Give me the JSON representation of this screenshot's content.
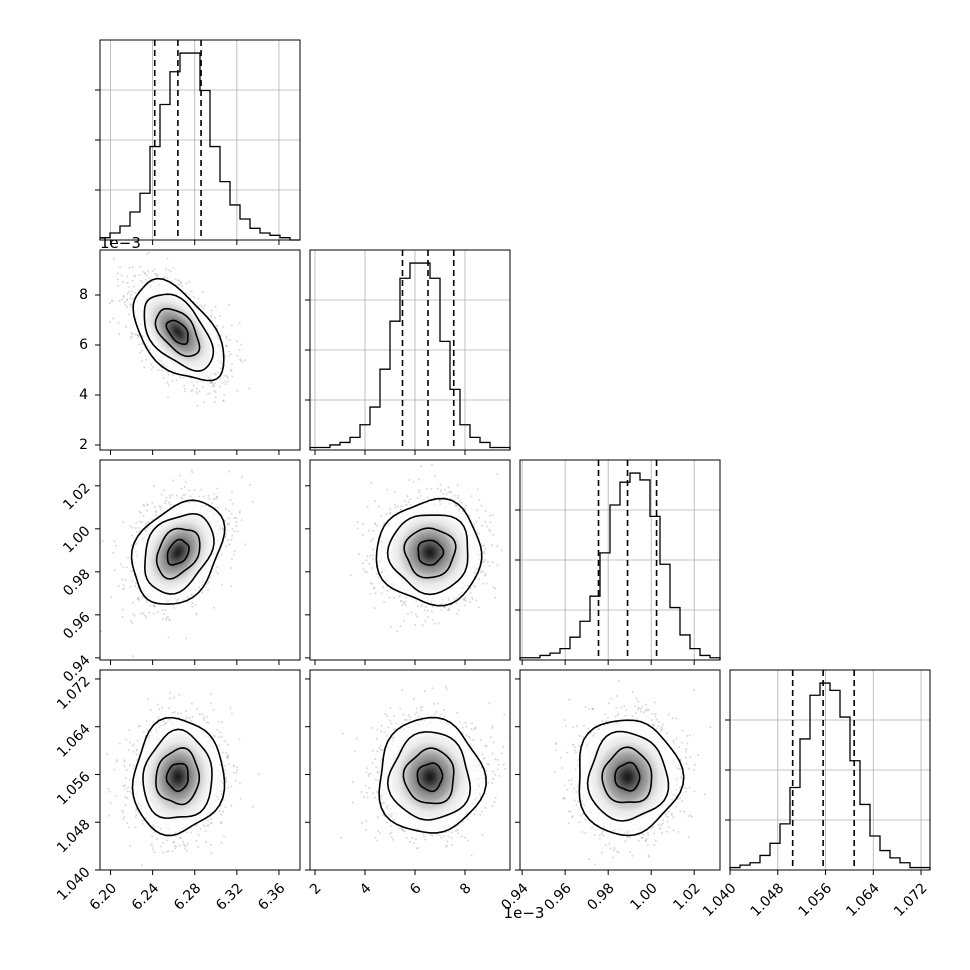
{
  "chart_data": {
    "type": "corner",
    "grid": true,
    "parameters": [
      {
        "range": [
          6.19,
          6.38
        ],
        "ticks": [
          6.2,
          6.24,
          6.28,
          6.32,
          6.36
        ],
        "tick_labels": [
          "6.20",
          "6.24",
          "6.28",
          "6.32",
          "6.36"
        ],
        "offset_text": "",
        "quantiles": [
          6.242,
          6.264,
          6.286
        ],
        "histogram": [
          1,
          3,
          6,
          12,
          20,
          40,
          58,
          72,
          80,
          80,
          64,
          40,
          25,
          15,
          9,
          5,
          3,
          2,
          1,
          0
        ]
      },
      {
        "range": [
          1.8,
          9.8
        ],
        "ticks": [
          2,
          4,
          6,
          8
        ],
        "tick_labels": [
          "2",
          "4",
          "6",
          "8"
        ],
        "offset_text": "1e−3",
        "quantiles": [
          5.5,
          6.52,
          7.55
        ],
        "histogram": [
          1,
          1,
          2,
          3,
          5,
          10,
          17,
          32,
          51,
          68,
          74,
          74,
          68,
          43,
          24,
          10,
          5,
          3,
          1,
          1
        ]
      },
      {
        "range": [
          0.939,
          1.032
        ],
        "ticks": [
          0.94,
          0.96,
          0.98,
          1.0,
          1.02
        ],
        "tick_labels": [
          "0.94",
          "0.96",
          "0.98",
          "1.00",
          "1.02"
        ],
        "offset_text": "",
        "quantiles": [
          0.9755,
          0.989,
          1.0025
        ],
        "histogram": [
          1,
          1,
          2,
          3,
          5,
          10,
          17,
          28,
          47,
          68,
          78,
          82,
          79,
          63,
          42,
          23,
          11,
          5,
          2,
          1
        ]
      },
      {
        "range": [
          1.04,
          1.0735
        ],
        "ticks": [
          1.04,
          1.048,
          1.056,
          1.064,
          1.072
        ],
        "tick_labels": [
          "1.040",
          "1.048",
          "1.056",
          "1.064",
          "1.072"
        ],
        "offset_text": "",
        "quantiles": [
          1.0505,
          1.0556,
          1.0608
        ],
        "histogram": [
          1,
          2,
          3,
          6,
          11,
          19,
          34,
          54,
          72,
          77,
          74,
          63,
          45,
          27,
          14,
          8,
          5,
          3,
          1,
          1
        ]
      }
    ],
    "pairs": [
      {
        "x": 0,
        "y": 1,
        "center": [
          6.264,
          6.52
        ],
        "sigma": [
          0.0205,
          0.95
        ],
        "rho": -0.5
      },
      {
        "x": 0,
        "y": 2,
        "center": [
          6.264,
          0.989
        ],
        "sigma": [
          0.0205,
          0.0115
        ],
        "rho": 0.3
      },
      {
        "x": 1,
        "y": 2,
        "center": [
          6.6,
          0.989
        ],
        "sigma": [
          1.0,
          0.0115
        ],
        "rho": 0.0
      },
      {
        "x": 0,
        "y": 3,
        "center": [
          6.264,
          1.0556
        ],
        "sigma": [
          0.0205,
          0.0046
        ],
        "rho": 0.05
      },
      {
        "x": 1,
        "y": 3,
        "center": [
          6.6,
          1.0556
        ],
        "sigma": [
          1.0,
          0.0046
        ],
        "rho": 0.0
      },
      {
        "x": 2,
        "y": 3,
        "center": [
          0.989,
          1.0556
        ],
        "sigma": [
          0.0115,
          0.0046
        ],
        "rho": 0.0
      }
    ]
  }
}
